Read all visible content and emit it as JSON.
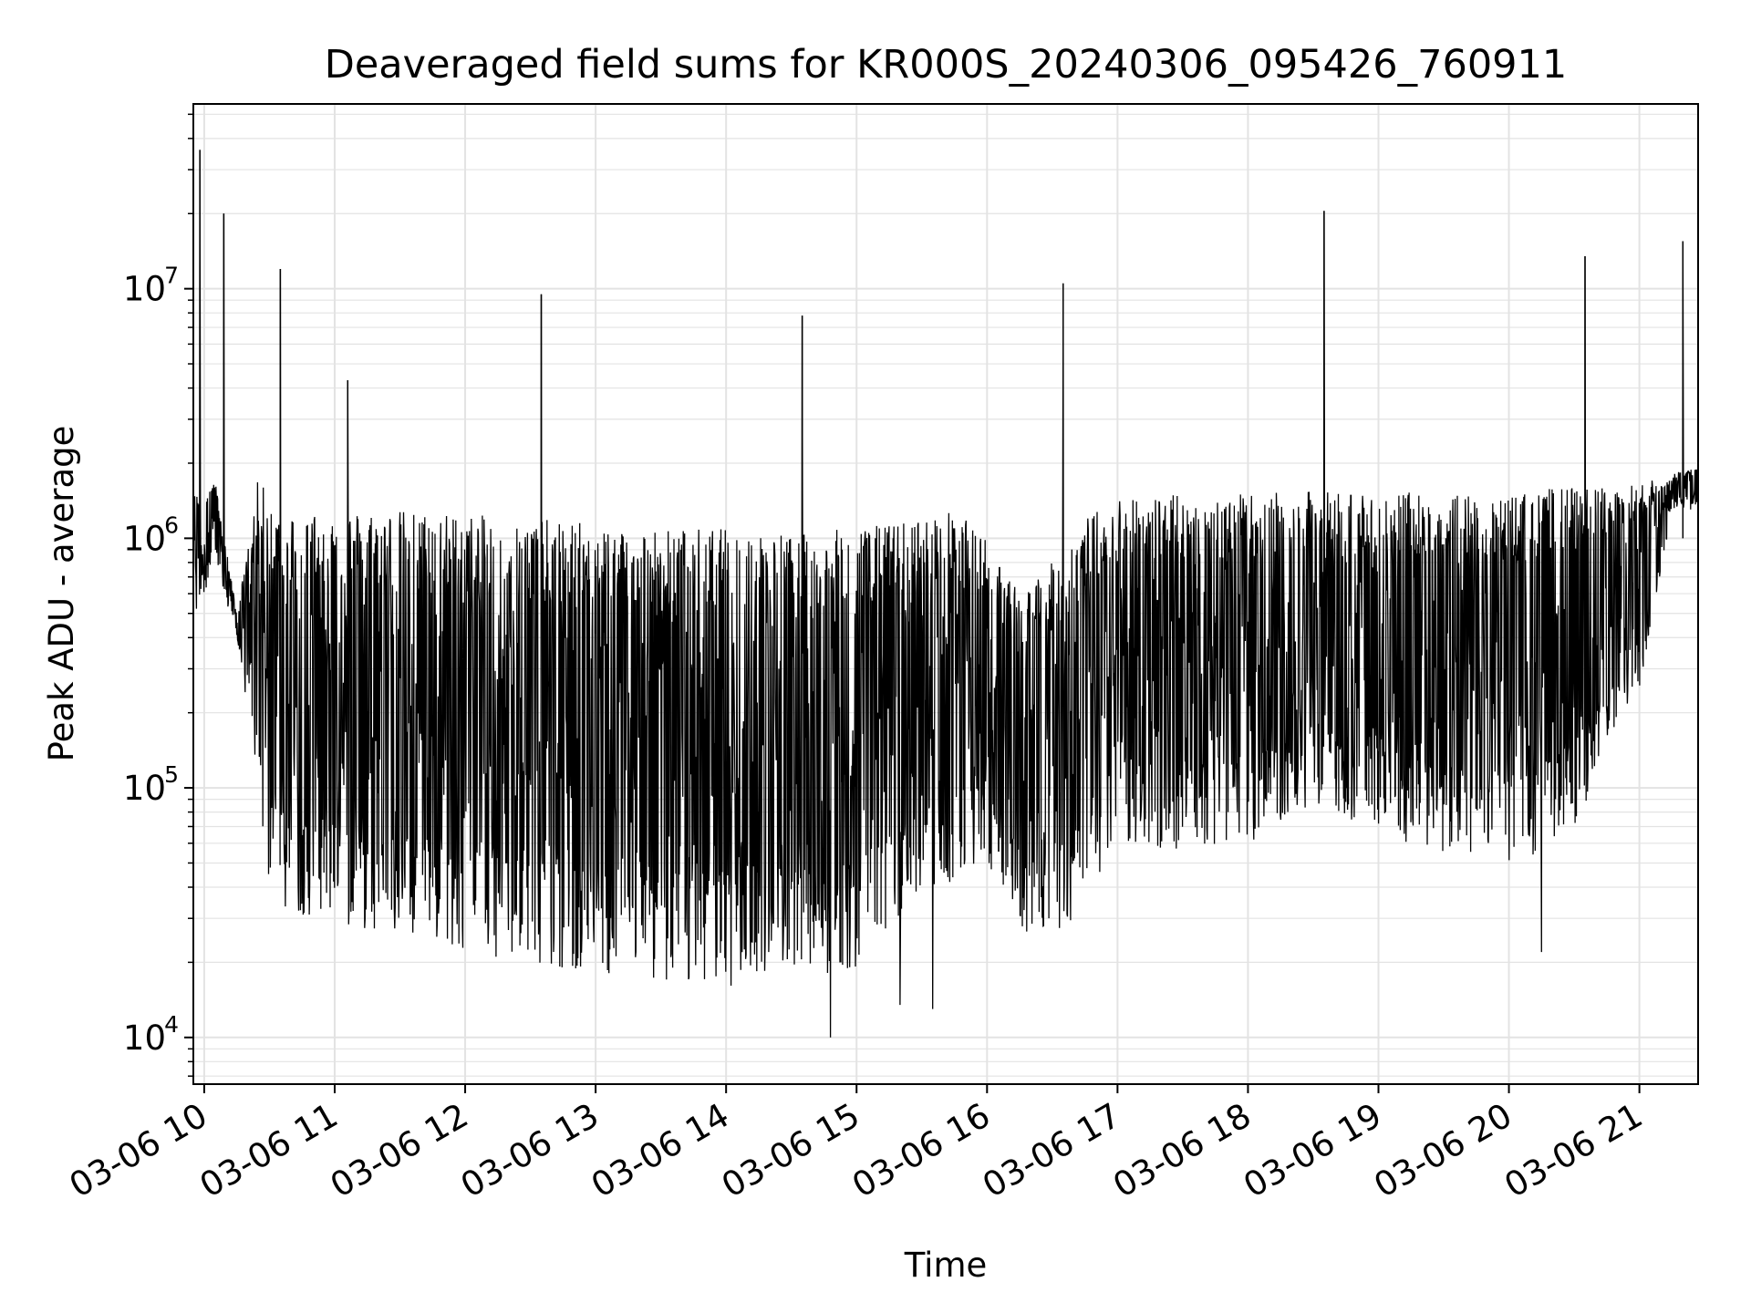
{
  "chart_data": {
    "type": "line",
    "title": "Deaveraged field sums for KR000S_20240306_095426_760911",
    "xlabel": "Time",
    "ylabel": "Peak ADU - average",
    "y_scale": "log",
    "ylim": [
      6500,
      55000000
    ],
    "xlim": [
      "2024-03-06 09:55",
      "2024-03-06 21:27"
    ],
    "grid": true,
    "line_color": "#000000",
    "grid_color": "#e3e3e3",
    "x_ticks": [
      {
        "time": "2024-03-06 10:00",
        "label": "03-06 10"
      },
      {
        "time": "2024-03-06 11:00",
        "label": "03-06 11"
      },
      {
        "time": "2024-03-06 12:00",
        "label": "03-06 12"
      },
      {
        "time": "2024-03-06 13:00",
        "label": "03-06 13"
      },
      {
        "time": "2024-03-06 14:00",
        "label": "03-06 14"
      },
      {
        "time": "2024-03-06 15:00",
        "label": "03-06 15"
      },
      {
        "time": "2024-03-06 16:00",
        "label": "03-06 16"
      },
      {
        "time": "2024-03-06 17:00",
        "label": "03-06 17"
      },
      {
        "time": "2024-03-06 18:00",
        "label": "03-06 18"
      },
      {
        "time": "2024-03-06 19:00",
        "label": "03-06 19"
      },
      {
        "time": "2024-03-06 20:00",
        "label": "03-06 20"
      },
      {
        "time": "2024-03-06 21:00",
        "label": "03-06 21"
      }
    ],
    "y_ticks": [
      {
        "value": 10000,
        "base": "10",
        "exp": "4"
      },
      {
        "value": 100000,
        "base": "10",
        "exp": "5"
      },
      {
        "value": 1000000,
        "base": "10",
        "exp": "6"
      },
      {
        "value": 10000000,
        "base": "10",
        "exp": "7"
      }
    ],
    "series": [
      {
        "x": [
          "2024-03-06 09:55",
          "2024-03-06 10:05",
          "2024-03-06 10:15",
          "2024-03-06 10:20",
          "2024-03-06 10:25",
          "2024-03-06 10:30",
          "2024-03-06 10:35",
          "2024-03-06 10:40",
          "2024-03-06 10:50",
          "2024-03-06 11:00",
          "2024-03-06 11:30",
          "2024-03-06 12:00",
          "2024-03-06 12:30",
          "2024-03-06 13:00",
          "2024-03-06 13:30",
          "2024-03-06 14:00",
          "2024-03-06 14:30",
          "2024-03-06 15:00",
          "2024-03-06 15:30",
          "2024-03-06 15:45",
          "2024-03-06 16:00",
          "2024-03-06 16:15",
          "2024-03-06 16:30",
          "2024-03-06 16:45",
          "2024-03-06 17:00",
          "2024-03-06 17:30",
          "2024-03-06 18:00",
          "2024-03-06 18:30",
          "2024-03-06 19:00",
          "2024-03-06 19:30",
          "2024-03-06 20:00",
          "2024-03-06 20:15",
          "2024-03-06 20:20",
          "2024-03-06 20:30",
          "2024-03-06 21:00",
          "2024-03-06 21:15",
          "2024-03-06 21:27"
        ],
        "upper": [
          1500000,
          1700000,
          500000,
          900000,
          1800000,
          1400000,
          1300000,
          1300000,
          1300000,
          1300000,
          1300000,
          1250000,
          1200000,
          1150000,
          1100000,
          1100000,
          1050000,
          1100000,
          1200000,
          1300000,
          1000000,
          600000,
          800000,
          1200000,
          1500000,
          1500000,
          1500000,
          1550000,
          1550000,
          1500000,
          1500000,
          1550000,
          1600000,
          1600000,
          1650000,
          1800000,
          2000000
        ],
        "lower": [
          450000,
          800000,
          400000,
          200000,
          100000,
          40000,
          33000,
          32000,
          30000,
          28000,
          25000,
          22000,
          20000,
          18000,
          17000,
          16000,
          17000,
          19000,
          40000,
          40000,
          50000,
          27000,
          25000,
          30000,
          60000,
          55000,
          60000,
          85000,
          65000,
          55000,
          50000,
          55000,
          60000,
          70000,
          250000,
          1300000,
          1300000
        ],
        "spikes": [
          {
            "time": "2024-03-06 09:58",
            "value": 36000000
          },
          {
            "time": "2024-03-06 10:09",
            "value": 20000000
          },
          {
            "time": "2024-03-06 10:35",
            "value": 12000000
          },
          {
            "time": "2024-03-06 11:06",
            "value": 4300000
          },
          {
            "time": "2024-03-06 12:35",
            "value": 9500000
          },
          {
            "time": "2024-03-06 14:35",
            "value": 7800000
          },
          {
            "time": "2024-03-06 16:35",
            "value": 10500000
          },
          {
            "time": "2024-03-06 18:35",
            "value": 20500000
          },
          {
            "time": "2024-03-06 20:35",
            "value": 13500000
          },
          {
            "time": "2024-03-06 21:20",
            "value": 15500000
          }
        ],
        "dips": [
          {
            "time": "2024-03-06 14:48",
            "value": 10000
          },
          {
            "time": "2024-03-06 15:20",
            "value": 13500
          },
          {
            "time": "2024-03-06 15:35",
            "value": 13000
          },
          {
            "time": "2024-03-06 20:15",
            "value": 22000
          }
        ]
      }
    ]
  }
}
